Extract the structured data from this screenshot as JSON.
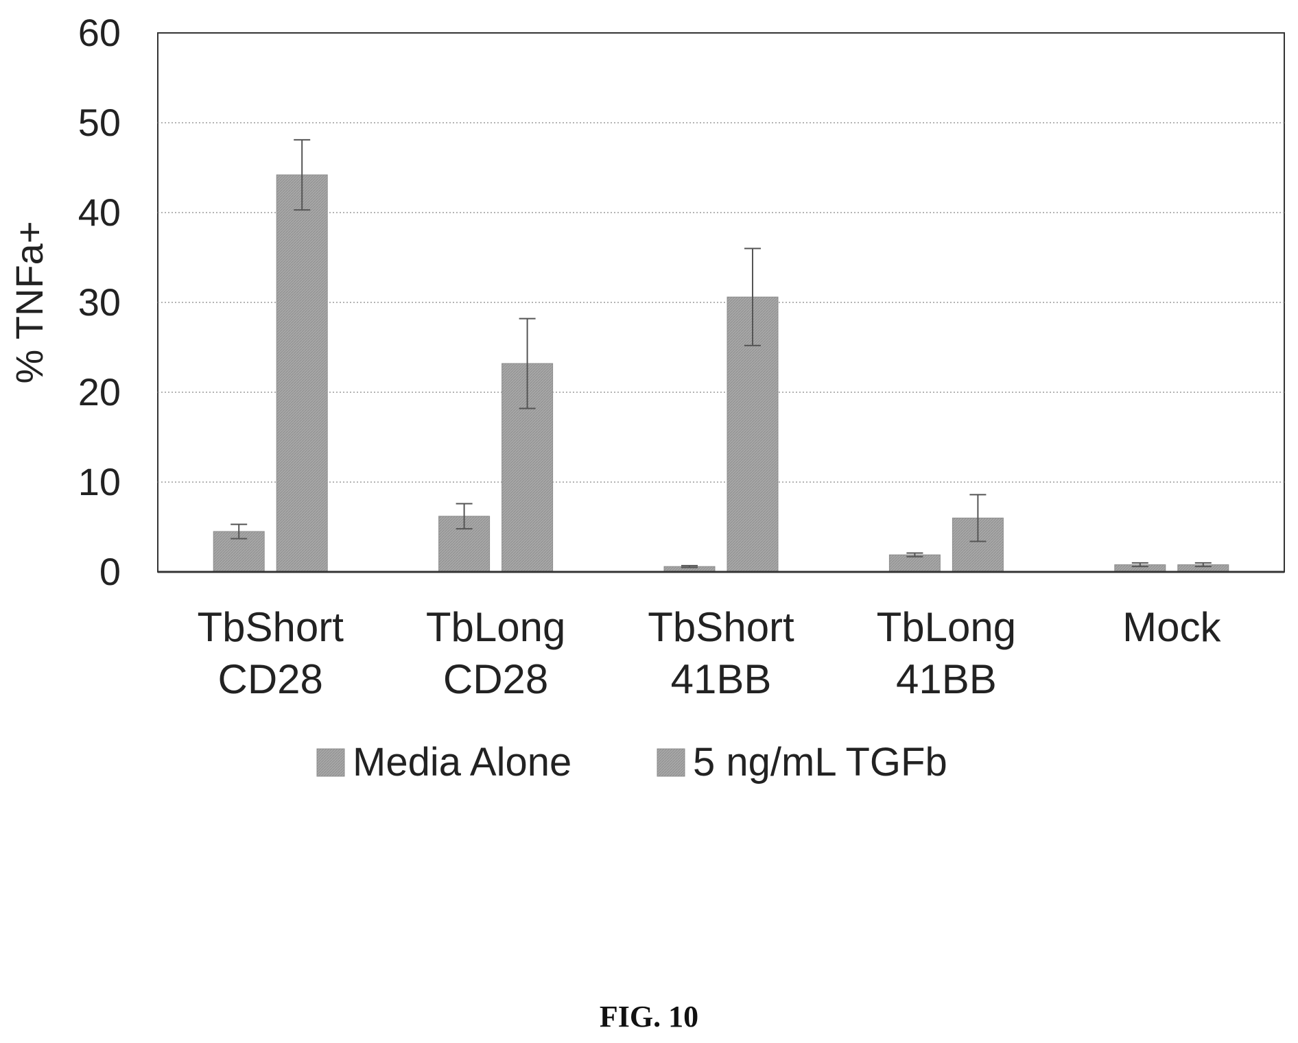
{
  "chart_data": {
    "type": "bar",
    "categories": [
      [
        "TbShort",
        "CD28"
      ],
      [
        "TbLong",
        "CD28"
      ],
      [
        "TbShort",
        "41BB"
      ],
      [
        "TbLong",
        "41BB"
      ],
      [
        "Mock"
      ]
    ],
    "series": [
      {
        "name": "Media Alone",
        "values": [
          4.5,
          6.2,
          0.6,
          1.9,
          0.8
        ],
        "errors": [
          0.8,
          1.4,
          0.1,
          0.2,
          0.2
        ]
      },
      {
        "name": "5 ng/mL TGFb",
        "values": [
          44.2,
          23.2,
          30.6,
          6.0,
          0.8
        ],
        "errors": [
          3.9,
          5.0,
          5.4,
          2.6,
          0.2
        ]
      }
    ],
    "ylabel": "% TNFa+",
    "xlabel": "",
    "ylim": [
      0,
      60
    ],
    "yticks": [
      "0",
      "10",
      "20",
      "30",
      "40",
      "50",
      "60"
    ],
    "grid": true,
    "legend_position": "bottom",
    "colors": {
      "bar": "#a6a6a6",
      "bar_edge": "#8c8c8c",
      "error_bar": "#555555",
      "axis": "#333333",
      "grid": "#9a9a9a"
    }
  },
  "caption": "FIG. 10"
}
